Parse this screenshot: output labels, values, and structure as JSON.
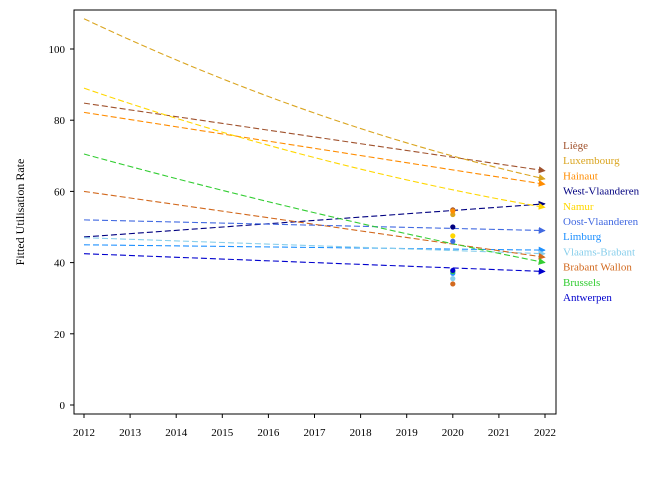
{
  "chart_data": {
    "type": "line",
    "title": "",
    "xlabel": "",
    "ylabel": "Fitted Utilisation Rate",
    "xlim": [
      2012,
      2022
    ],
    "ylim": [
      0,
      110
    ],
    "xticks": [
      "2012",
      "2013",
      "2014",
      "2015",
      "2016",
      "2017",
      "2018",
      "2019",
      "2020",
      "2021",
      "2022"
    ],
    "yticks": [
      "0",
      "20",
      "40",
      "60",
      "80",
      "100"
    ],
    "grid": false,
    "legend": "right",
    "series": [
      {
        "name": "Liège",
        "color": "#a0522d",
        "x": [
          2012,
          2022
        ],
        "y": [
          84.8,
          65.8
        ],
        "obs_x": 2020,
        "obs_y": 54.8
      },
      {
        "name": "Luxembourg",
        "color": "#daa520",
        "x": [
          2012,
          2017,
          2022
        ],
        "y": [
          108.5,
          82.0,
          63.5
        ],
        "obs_x": 2020,
        "obs_y": 53.5
      },
      {
        "name": "Hainaut",
        "color": "#ff8c00",
        "x": [
          2012,
          2022
        ],
        "y": [
          82.2,
          62.0
        ],
        "obs_x": 2020,
        "obs_y": 54.5
      },
      {
        "name": "West-Vlaanderen",
        "color": "#000080",
        "x": [
          2012,
          2022
        ],
        "y": [
          47.2,
          56.5
        ],
        "obs_x": 2020,
        "obs_y": 50.0
      },
      {
        "name": "Namur",
        "color": "#ffd700",
        "x": [
          2012,
          2017,
          2022
        ],
        "y": [
          89.0,
          69.5,
          55.5
        ],
        "obs_x": 2020,
        "obs_y": 47.5
      },
      {
        "name": "Oost-Vlaanderen",
        "color": "#4169e1",
        "x": [
          2012,
          2022
        ],
        "y": [
          52.0,
          49.0
        ],
        "obs_x": 2020,
        "obs_y": 46.0
      },
      {
        "name": "Limburg",
        "color": "#1e90ff",
        "x": [
          2012,
          2022
        ],
        "y": [
          45.0,
          43.5
        ],
        "obs_x": 2020,
        "obs_y": 37.0
      },
      {
        "name": "Vlaams-Brabant",
        "color": "#87ceeb",
        "x": [
          2012,
          2022
        ],
        "y": [
          47.0,
          42.5
        ],
        "obs_x": 2020,
        "obs_y": 35.5
      },
      {
        "name": "Brabant Wallon",
        "color": "#d2691e",
        "x": [
          2012,
          2022
        ],
        "y": [
          60.0,
          41.5
        ],
        "obs_x": 2020,
        "obs_y": 34.0
      },
      {
        "name": "Brussels",
        "color": "#32cd32",
        "x": [
          2012,
          2017,
          2022
        ],
        "y": [
          70.5,
          54.0,
          40.0
        ],
        "obs_x": 2020,
        "obs_y": 37.5
      },
      {
        "name": "Antwerpen",
        "color": "#0000cd",
        "x": [
          2012,
          2022
        ],
        "y": [
          42.5,
          37.5
        ],
        "obs_x": 2020,
        "obs_y": 37.8
      }
    ]
  }
}
